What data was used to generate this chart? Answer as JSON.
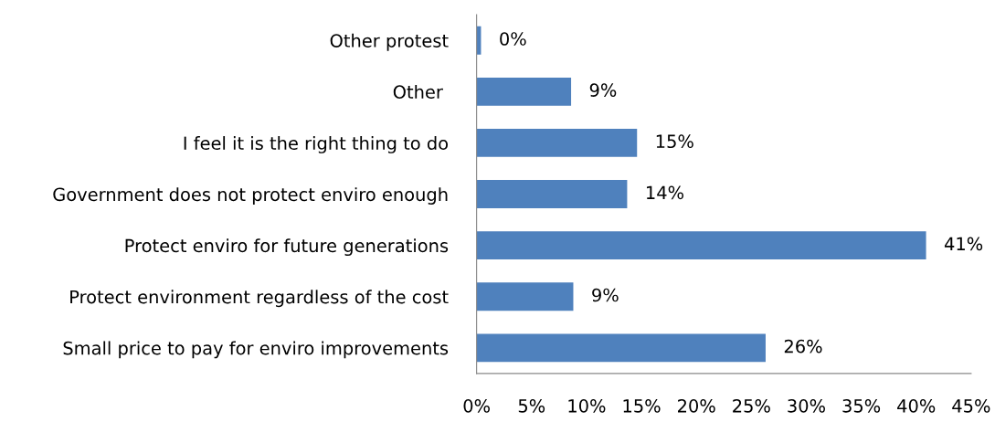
{
  "chart_data": {
    "type": "bar",
    "orientation": "horizontal",
    "categories": [
      "Other protest",
      "Other ",
      "I feel it is the right thing to do",
      "Government does not protect enviro enough",
      "Protect enviro for future generations",
      "Protect environment regardless of the cost",
      "Small price to pay for enviro improvements"
    ],
    "values": [
      0.4,
      8.6,
      14.6,
      13.7,
      40.9,
      8.8,
      26.3
    ],
    "value_labels": [
      "0%",
      "9%",
      "15%",
      "14%",
      "41%",
      "9%",
      "26%"
    ],
    "color": "#4f81bd",
    "xlim": [
      0,
      45
    ],
    "xticks": [
      {
        "value": 0,
        "label": "0%"
      },
      {
        "value": 5,
        "label": "5%"
      },
      {
        "value": 10,
        "label": "10%"
      },
      {
        "value": 15,
        "label": "15%"
      },
      {
        "value": 20,
        "label": "20%"
      },
      {
        "value": 25,
        "label": "25%"
      },
      {
        "value": 30,
        "label": "30%"
      },
      {
        "value": 35,
        "label": "35%"
      },
      {
        "value": 40,
        "label": "40%"
      },
      {
        "value": 45,
        "label": "45%"
      }
    ],
    "grid": false,
    "legend": false
  }
}
